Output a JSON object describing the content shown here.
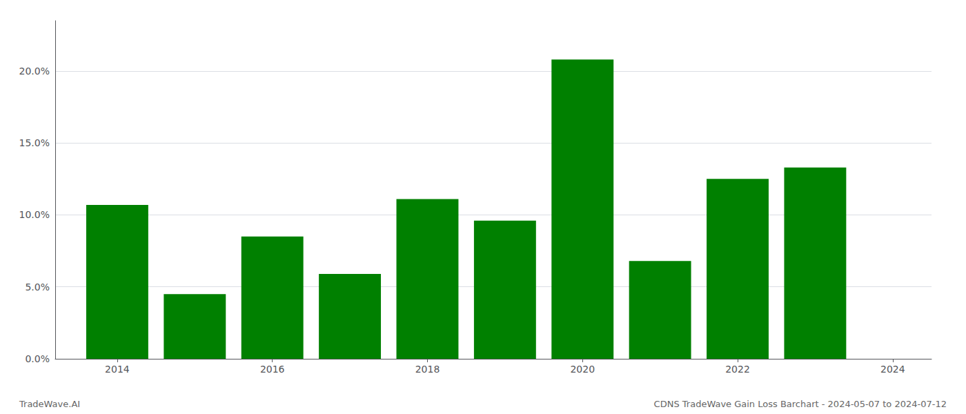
{
  "chart_data": {
    "type": "bar",
    "x": [
      2014,
      2015,
      2016,
      2017,
      2018,
      2019,
      2020,
      2021,
      2022,
      2023
    ],
    "values": [
      0.107,
      0.045,
      0.085,
      0.059,
      0.111,
      0.096,
      0.208,
      0.068,
      0.125,
      0.133
    ],
    "color": "#008000",
    "xlim": [
      2013.2,
      2024.5
    ],
    "xticks": [
      2014,
      2016,
      2018,
      2020,
      2022,
      2024
    ],
    "ylim": [
      0,
      0.235
    ],
    "yticks": [
      {
        "value": 0.0,
        "label": "0.0%"
      },
      {
        "value": 0.05,
        "label": "5.0%"
      },
      {
        "value": 0.1,
        "label": "10.0%"
      },
      {
        "value": 0.15,
        "label": "15.0%"
      },
      {
        "value": 0.2,
        "label": "20.0%"
      }
    ],
    "grid": true,
    "annotations": [
      "TradeWave.AI",
      "CDNS TradeWave Gain Loss Barchart - 2024-05-07 to 2024-07-12"
    ]
  }
}
